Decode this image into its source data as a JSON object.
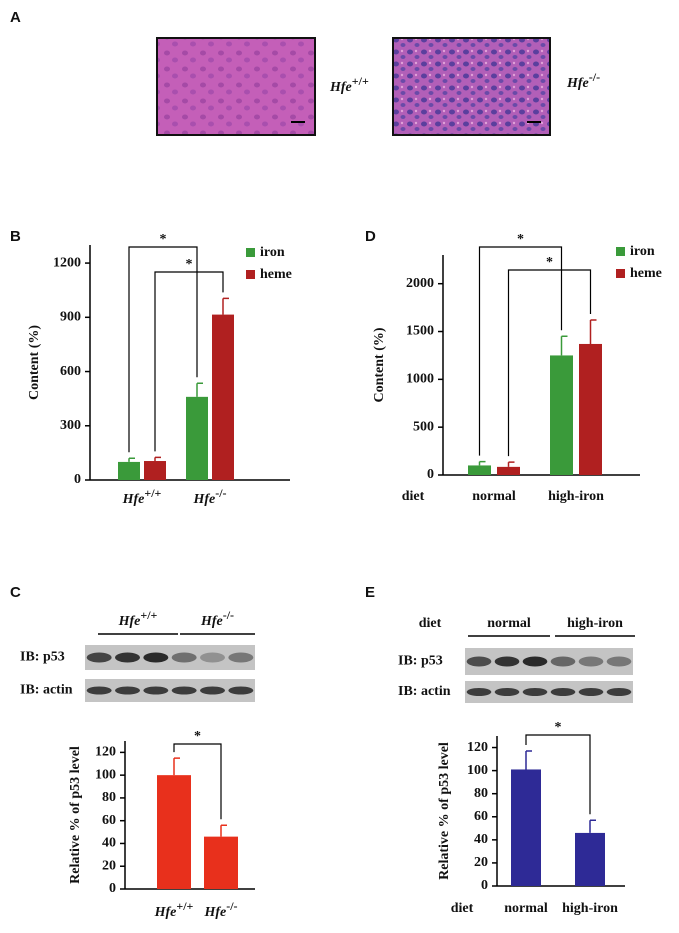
{
  "panel_labels": [
    "A",
    "B",
    "C",
    "D",
    "E"
  ],
  "histology": {
    "labels": [
      "Hfe+/+",
      "Hfe-/-"
    ]
  },
  "blots": [
    {
      "groups": [
        "Hfe+/+",
        "Hfe-/-"
      ],
      "rows": [
        "IB: p53",
        "IB: actin"
      ]
    },
    {
      "group_title": "diet",
      "groups": [
        "normal",
        "high-iron"
      ],
      "rows": [
        "IB: p53",
        "IB: actin"
      ]
    }
  ],
  "chart_data": [
    {
      "type": "bar",
      "ylabel": "Content (%)",
      "categories": [
        "Hfe+/+",
        "Hfe-/-"
      ],
      "series": [
        {
          "name": "iron",
          "color": "#3a9a3a",
          "values": [
            100,
            460
          ],
          "errors": [
            20,
            75
          ]
        },
        {
          "name": "heme",
          "color": "#b02020",
          "values": [
            105,
            915
          ],
          "errors": [
            20,
            90
          ]
        }
      ],
      "ylim": [
        0,
        1300
      ],
      "yticks": [
        0,
        300,
        600,
        900,
        1200
      ],
      "legend": "top-right",
      "annotations": [
        "*",
        "*"
      ]
    },
    {
      "type": "bar",
      "ylabel": "Content (%)",
      "xlabel": "diet",
      "categories": [
        "normal",
        "high-iron"
      ],
      "series": [
        {
          "name": "iron",
          "color": "#3a9a3a",
          "values": [
            100,
            1250
          ],
          "errors": [
            40,
            200
          ]
        },
        {
          "name": "heme",
          "color": "#b02020",
          "values": [
            85,
            1370
          ],
          "errors": [
            50,
            250
          ]
        }
      ],
      "ylim": [
        0,
        2300
      ],
      "yticks": [
        0,
        500,
        1000,
        1500,
        2000
      ],
      "legend": "top-right",
      "annotations": [
        "*",
        "*"
      ]
    },
    {
      "type": "bar",
      "ylabel": "Relative % of p53 level",
      "categories": [
        "Hfe+/+",
        "Hfe-/-"
      ],
      "series": [
        {
          "color": "#e8301c",
          "values": [
            100,
            46
          ],
          "errors": [
            15,
            10
          ]
        }
      ],
      "ylim": [
        0,
        130
      ],
      "yticks": [
        0,
        20,
        40,
        60,
        80,
        100,
        120
      ],
      "annotations": [
        "*"
      ]
    },
    {
      "type": "bar",
      "ylabel": "Relative % of p53 level",
      "xlabel": "diet",
      "categories": [
        "normal",
        "high-iron"
      ],
      "series": [
        {
          "color": "#2e2a96",
          "values": [
            101,
            46
          ],
          "errors": [
            16,
            11
          ]
        }
      ],
      "ylim": [
        0,
        130
      ],
      "yticks": [
        0,
        20,
        40,
        60,
        80,
        100,
        120
      ],
      "annotations": [
        "*"
      ]
    }
  ]
}
